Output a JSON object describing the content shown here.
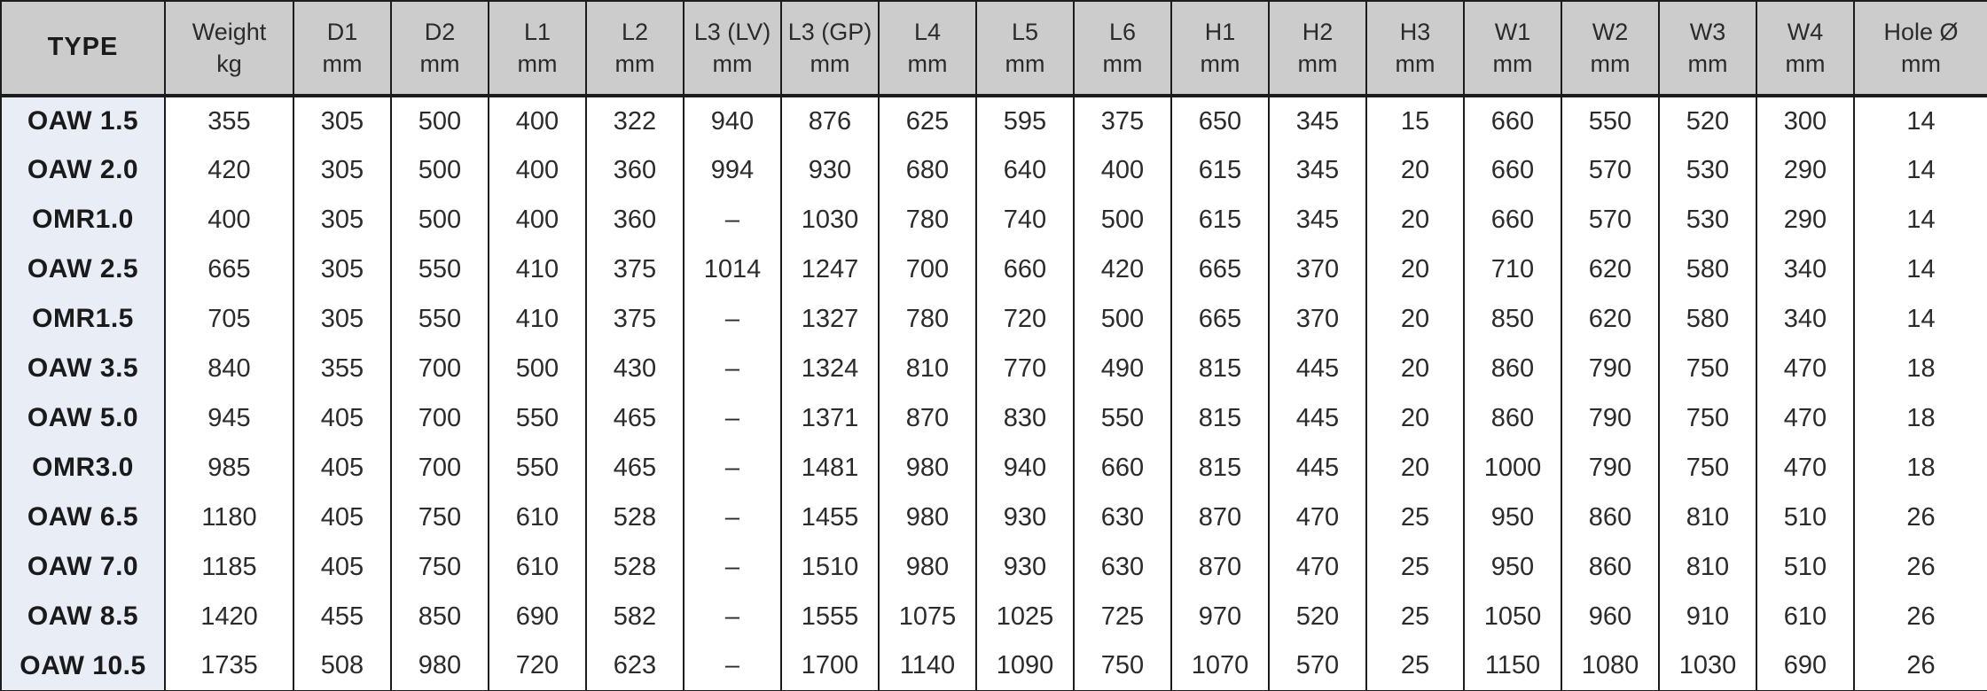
{
  "table": {
    "columns": [
      {
        "label": "TYPE",
        "unit": ""
      },
      {
        "label": "Weight",
        "unit": "kg"
      },
      {
        "label": "D1",
        "unit": "mm"
      },
      {
        "label": "D2",
        "unit": "mm"
      },
      {
        "label": "L1",
        "unit": "mm"
      },
      {
        "label": "L2",
        "unit": "mm"
      },
      {
        "label": "L3 (LV)",
        "unit": "mm"
      },
      {
        "label": "L3 (GP)",
        "unit": "mm"
      },
      {
        "label": "L4",
        "unit": "mm"
      },
      {
        "label": "L5",
        "unit": "mm"
      },
      {
        "label": "L6",
        "unit": "mm"
      },
      {
        "label": "H1",
        "unit": "mm"
      },
      {
        "label": "H2",
        "unit": "mm"
      },
      {
        "label": "H3",
        "unit": "mm"
      },
      {
        "label": "W1",
        "unit": "mm"
      },
      {
        "label": "W2",
        "unit": "mm"
      },
      {
        "label": "W3",
        "unit": "mm"
      },
      {
        "label": "W4",
        "unit": "mm"
      },
      {
        "label": "Hole Ø",
        "unit": "mm"
      }
    ],
    "rows": [
      {
        "type": "OAW 1.5",
        "values": [
          "355",
          "305",
          "500",
          "400",
          "322",
          "940",
          "876",
          "625",
          "595",
          "375",
          "650",
          "345",
          "15",
          "660",
          "550",
          "520",
          "300",
          "14"
        ]
      },
      {
        "type": "OAW 2.0",
        "values": [
          "420",
          "305",
          "500",
          "400",
          "360",
          "994",
          "930",
          "680",
          "640",
          "400",
          "615",
          "345",
          "20",
          "660",
          "570",
          "530",
          "290",
          "14"
        ]
      },
      {
        "type": "OMR1.0",
        "values": [
          "400",
          "305",
          "500",
          "400",
          "360",
          "–",
          "1030",
          "780",
          "740",
          "500",
          "615",
          "345",
          "20",
          "660",
          "570",
          "530",
          "290",
          "14"
        ]
      },
      {
        "type": "OAW 2.5",
        "values": [
          "665",
          "305",
          "550",
          "410",
          "375",
          "1014",
          "1247",
          "700",
          "660",
          "420",
          "665",
          "370",
          "20",
          "710",
          "620",
          "580",
          "340",
          "14"
        ]
      },
      {
        "type": "OMR1.5",
        "values": [
          "705",
          "305",
          "550",
          "410",
          "375",
          "–",
          "1327",
          "780",
          "720",
          "500",
          "665",
          "370",
          "20",
          "850",
          "620",
          "580",
          "340",
          "14"
        ]
      },
      {
        "type": "OAW 3.5",
        "values": [
          "840",
          "355",
          "700",
          "500",
          "430",
          "–",
          "1324",
          "810",
          "770",
          "490",
          "815",
          "445",
          "20",
          "860",
          "790",
          "750",
          "470",
          "18"
        ]
      },
      {
        "type": "OAW 5.0",
        "values": [
          "945",
          "405",
          "700",
          "550",
          "465",
          "–",
          "1371",
          "870",
          "830",
          "550",
          "815",
          "445",
          "20",
          "860",
          "790",
          "750",
          "470",
          "18"
        ]
      },
      {
        "type": "OMR3.0",
        "values": [
          "985",
          "405",
          "700",
          "550",
          "465",
          "–",
          "1481",
          "980",
          "940",
          "660",
          "815",
          "445",
          "20",
          "1000",
          "790",
          "750",
          "470",
          "18"
        ]
      },
      {
        "type": "OAW 6.5",
        "values": [
          "1180",
          "405",
          "750",
          "610",
          "528",
          "–",
          "1455",
          "980",
          "930",
          "630",
          "870",
          "470",
          "25",
          "950",
          "860",
          "810",
          "510",
          "26"
        ]
      },
      {
        "type": "OAW 7.0",
        "values": [
          "1185",
          "405",
          "750",
          "610",
          "528",
          "–",
          "1510",
          "980",
          "930",
          "630",
          "870",
          "470",
          "25",
          "950",
          "860",
          "810",
          "510",
          "26"
        ]
      },
      {
        "type": "OAW 8.5",
        "values": [
          "1420",
          "455",
          "850",
          "690",
          "582",
          "–",
          "1555",
          "1075",
          "1025",
          "725",
          "970",
          "520",
          "25",
          "1050",
          "960",
          "910",
          "610",
          "26"
        ]
      },
      {
        "type": "OAW 10.5",
        "values": [
          "1735",
          "508",
          "980",
          "720",
          "623",
          "–",
          "1700",
          "1140",
          "1090",
          "750",
          "1070",
          "570",
          "25",
          "1150",
          "1080",
          "1030",
          "690",
          "26"
        ]
      }
    ]
  },
  "colors": {
    "header_bg": "#cccccc",
    "type_column_bg": "#e8edf6",
    "border": "#1c1c1c",
    "text": "#2b2b2b"
  }
}
